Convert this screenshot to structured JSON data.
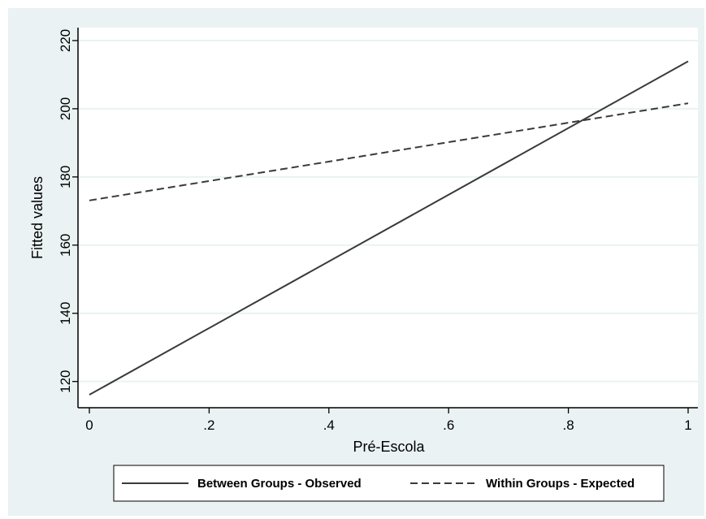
{
  "chart_data": {
    "type": "line",
    "xlabel": "Pré-Escola",
    "ylabel": "Fitted values",
    "xlim": [
      0,
      1
    ],
    "ylim": [
      112.3,
      223.8
    ],
    "x_ticks": [
      {
        "value": 0,
        "label": "0"
      },
      {
        "value": 0.2,
        "label": ".2"
      },
      {
        "value": 0.4,
        "label": ".4"
      },
      {
        "value": 0.6,
        "label": ".6"
      },
      {
        "value": 0.8,
        "label": ".8"
      },
      {
        "value": 1,
        "label": "1"
      }
    ],
    "y_ticks": [
      {
        "value": 120,
        "label": "120"
      },
      {
        "value": 140,
        "label": "140"
      },
      {
        "value": 160,
        "label": "160"
      },
      {
        "value": 180,
        "label": "180"
      },
      {
        "value": 200,
        "label": "200"
      },
      {
        "value": 220,
        "label": "220"
      }
    ],
    "grid": true,
    "legend_position": "bottom",
    "series": [
      {
        "name": "Between Groups - Observed",
        "style": "solid",
        "color": "#3a3a3a",
        "x": [
          0,
          1
        ],
        "y": [
          116.1,
          213.9
        ]
      },
      {
        "name": "Within Groups - Expected",
        "style": "dashed",
        "color": "#3a3a3a",
        "x": [
          0,
          1
        ],
        "y": [
          173.1,
          201.6
        ]
      }
    ]
  },
  "colors": {
    "outer_background": "#eaf2f3",
    "plot_background": "#ffffff",
    "grid": "#eaf2f3",
    "axis": "#000000"
  }
}
